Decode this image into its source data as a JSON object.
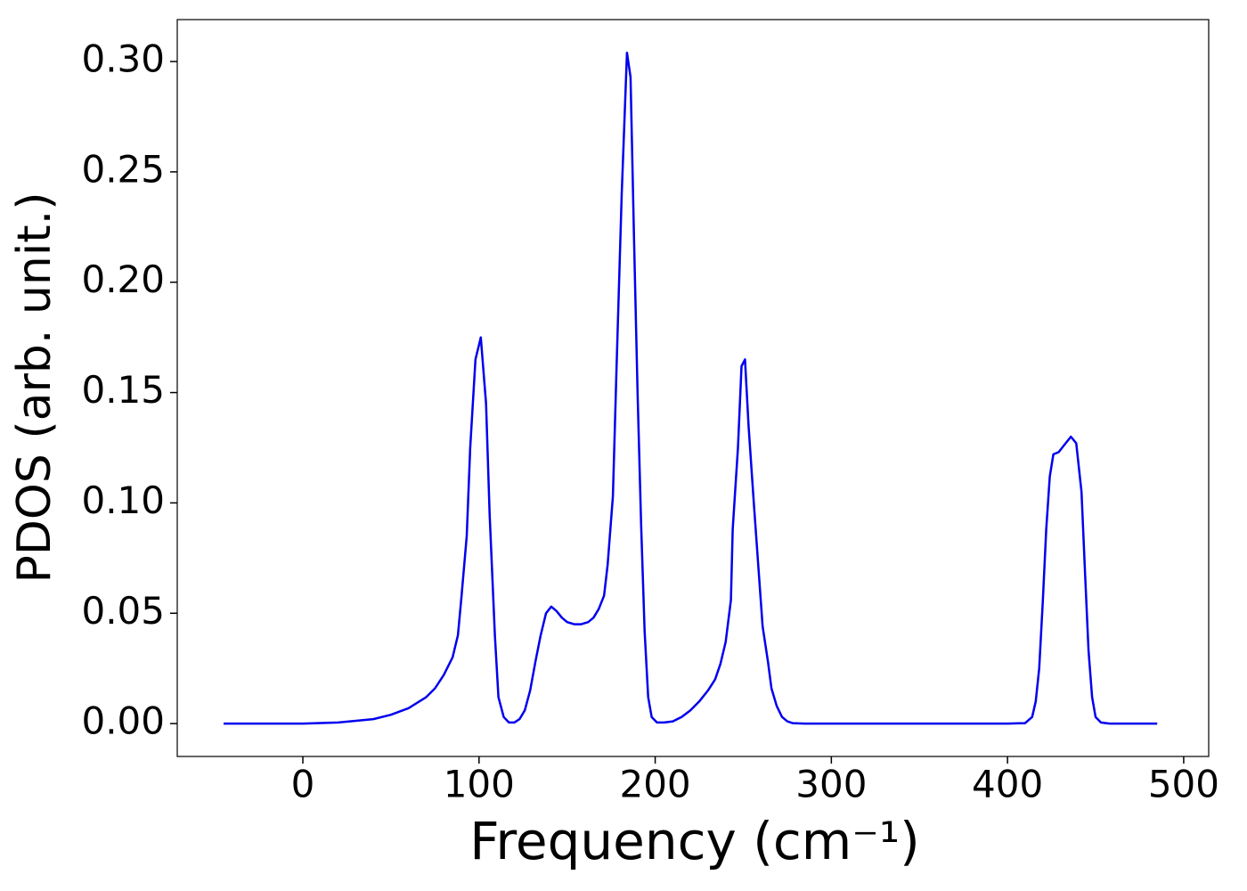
{
  "chart_data": {
    "type": "line",
    "xlabel": "Frequency (cm⁻¹)",
    "ylabel": "PDOS (arb. unit.)",
    "color": "#0000ee",
    "x": [
      -45,
      0,
      20,
      40,
      50,
      60,
      70,
      75,
      80,
      85,
      88,
      90,
      93,
      95,
      98,
      101,
      104,
      106,
      109,
      111,
      114,
      117,
      120,
      123,
      126,
      129,
      132,
      135,
      138,
      141,
      144,
      147,
      150,
      154,
      158,
      162,
      165,
      168,
      171,
      173,
      176,
      178,
      181,
      184,
      186,
      188,
      190,
      192,
      194,
      196,
      198,
      201,
      205,
      210,
      215,
      220,
      225,
      230,
      234,
      237,
      240,
      243,
      244,
      247,
      249,
      251,
      253,
      256,
      259,
      261,
      264,
      266,
      269,
      272,
      275,
      278,
      285,
      400,
      410,
      414,
      416,
      418,
      420,
      422,
      424,
      426,
      429,
      432,
      436,
      439,
      442,
      444,
      446,
      448,
      450,
      453,
      458,
      485
    ],
    "y": [
      0,
      0,
      0.0005,
      0.002,
      0.004,
      0.007,
      0.012,
      0.016,
      0.022,
      0.03,
      0.04,
      0.057,
      0.085,
      0.125,
      0.165,
      0.175,
      0.145,
      0.095,
      0.04,
      0.012,
      0.003,
      0.0005,
      0.0005,
      0.002,
      0.006,
      0.015,
      0.028,
      0.04,
      0.05,
      0.053,
      0.051,
      0.048,
      0.046,
      0.045,
      0.045,
      0.046,
      0.048,
      0.052,
      0.058,
      0.072,
      0.103,
      0.16,
      0.24,
      0.304,
      0.293,
      0.22,
      0.15,
      0.09,
      0.042,
      0.012,
      0.003,
      0.0005,
      0.0005,
      0.001,
      0.003,
      0.006,
      0.01,
      0.015,
      0.02,
      0.027,
      0.037,
      0.056,
      0.088,
      0.125,
      0.162,
      0.165,
      0.135,
      0.1,
      0.066,
      0.044,
      0.028,
      0.016,
      0.008,
      0.003,
      0.001,
      0.0002,
      0,
      0,
      0.0002,
      0.003,
      0.01,
      0.025,
      0.055,
      0.088,
      0.112,
      0.122,
      0.123,
      0.126,
      0.13,
      0.127,
      0.105,
      0.068,
      0.033,
      0.012,
      0.003,
      0.0005,
      0,
      0
    ],
    "xlim": [
      -71.3,
      514.2
    ],
    "ylim": [
      -0.0149,
      0.319
    ],
    "xticks": [
      0,
      100,
      200,
      300,
      400,
      500
    ],
    "yticks": [
      {
        "value": 0,
        "label": "0.00"
      },
      {
        "value": 0.05,
        "label": "0.05"
      },
      {
        "value": 0.1,
        "label": "0.10"
      },
      {
        "value": 0.15,
        "label": "0.15"
      },
      {
        "value": 0.2,
        "label": "0.20"
      },
      {
        "value": 0.25,
        "label": "0.25"
      },
      {
        "value": 0.3,
        "label": "0.30"
      }
    ]
  }
}
